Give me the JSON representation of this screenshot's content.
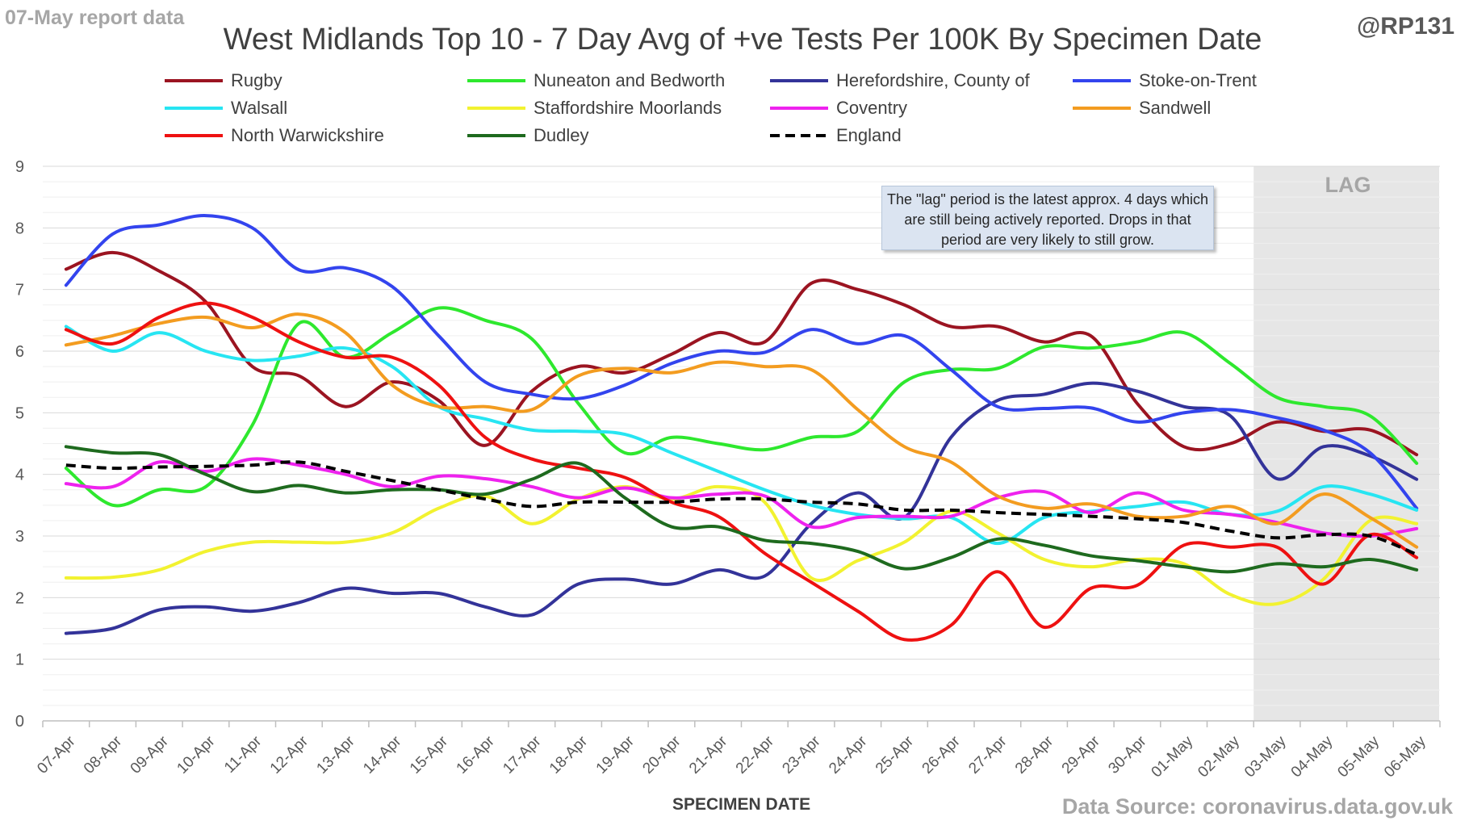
{
  "header": {
    "report_date": "07-May report data",
    "handle": "@RP131",
    "source": "Data Source: coronavirus.data.gov.uk"
  },
  "annotations": {
    "lag_label": "LAG",
    "lag_note": "The \"lag\" period is the latest approx. 4 days which are still being actively reported.  Drops in that period are very likely to still grow."
  },
  "chart_data": {
    "type": "line",
    "title": "West Midlands Top 10 - 7 Day Avg of +ve Tests Per 100K By Specimen Date",
    "xlabel": "SPECIMEN DATE",
    "ylabel": "",
    "ylim": [
      0,
      9
    ],
    "yticks": [
      0,
      1,
      2,
      3,
      4,
      5,
      6,
      7,
      8,
      9
    ],
    "grid": true,
    "legend_position": "top",
    "lag_start": "03-May",
    "lag_end": "06-May",
    "lag_color": "#e6e6e6",
    "categories": [
      "07-Apr",
      "08-Apr",
      "09-Apr",
      "10-Apr",
      "11-Apr",
      "12-Apr",
      "13-Apr",
      "14-Apr",
      "15-Apr",
      "16-Apr",
      "17-Apr",
      "18-Apr",
      "19-Apr",
      "20-Apr",
      "21-Apr",
      "22-Apr",
      "23-Apr",
      "24-Apr",
      "25-Apr",
      "26-Apr",
      "27-Apr",
      "28-Apr",
      "29-Apr",
      "30-Apr",
      "01-May",
      "02-May",
      "03-May",
      "04-May",
      "05-May",
      "06-May"
    ],
    "series": [
      {
        "name": "Rugby",
        "color": "#9b1421",
        "dashed": false,
        "values": [
          7.33,
          7.6,
          7.3,
          6.8,
          5.75,
          5.6,
          5.1,
          5.5,
          5.2,
          4.47,
          5.35,
          5.75,
          5.65,
          5.95,
          6.3,
          6.15,
          7.1,
          7.0,
          6.75,
          6.4,
          6.4,
          6.15,
          6.25,
          5.15,
          4.45,
          4.5,
          4.85,
          4.7,
          4.72,
          4.32
        ]
      },
      {
        "name": "Nuneaton and Bedworth",
        "color": "#2ee82e",
        "dashed": false,
        "values": [
          4.1,
          3.5,
          3.75,
          3.8,
          4.8,
          6.45,
          5.9,
          6.3,
          6.7,
          6.5,
          6.2,
          5.15,
          4.35,
          4.6,
          4.5,
          4.4,
          4.6,
          4.7,
          5.5,
          5.7,
          5.72,
          6.07,
          6.05,
          6.15,
          6.3,
          5.8,
          5.25,
          5.1,
          4.95,
          4.18
        ]
      },
      {
        "name": "Herefordshire, County of",
        "color": "#333399",
        "dashed": false,
        "values": [
          1.42,
          1.5,
          1.8,
          1.85,
          1.78,
          1.92,
          2.15,
          2.07,
          2.07,
          1.85,
          1.72,
          2.22,
          2.3,
          2.22,
          2.45,
          2.35,
          3.2,
          3.7,
          3.3,
          4.6,
          5.2,
          5.3,
          5.48,
          5.35,
          5.1,
          4.95,
          3.93,
          4.45,
          4.3,
          3.92
        ]
      },
      {
        "name": "Stoke-on-Trent",
        "color": "#3344ee",
        "dashed": false,
        "values": [
          7.07,
          7.9,
          8.05,
          8.2,
          8.0,
          7.32,
          7.35,
          7.05,
          6.25,
          5.5,
          5.3,
          5.23,
          5.45,
          5.8,
          6.0,
          5.98,
          6.35,
          6.12,
          6.25,
          5.7,
          5.1,
          5.07,
          5.08,
          4.85,
          5.0,
          5.05,
          4.92,
          4.72,
          4.35,
          3.45
        ]
      },
      {
        "name": "Walsall",
        "color": "#27e5f2",
        "dashed": false,
        "values": [
          6.4,
          6.0,
          6.3,
          6.0,
          5.85,
          5.92,
          6.05,
          5.75,
          5.1,
          4.9,
          4.72,
          4.7,
          4.65,
          4.35,
          4.05,
          3.75,
          3.5,
          3.35,
          3.28,
          3.3,
          2.88,
          3.3,
          3.4,
          3.48,
          3.55,
          3.35,
          3.4,
          3.8,
          3.68,
          3.42
        ]
      },
      {
        "name": "Staffordshire Moorlands",
        "color": "#f2f230",
        "dashed": false,
        "values": [
          2.32,
          2.33,
          2.45,
          2.75,
          2.9,
          2.9,
          2.9,
          3.05,
          3.45,
          3.65,
          3.2,
          3.6,
          3.8,
          3.6,
          3.8,
          3.55,
          2.32,
          2.6,
          2.9,
          3.4,
          3.05,
          2.62,
          2.5,
          2.62,
          2.55,
          2.05,
          1.9,
          2.3,
          3.25,
          3.2
        ]
      },
      {
        "name": "Coventry",
        "color": "#ee22ee",
        "dashed": false,
        "values": [
          3.85,
          3.8,
          4.2,
          4.05,
          4.25,
          4.15,
          4.0,
          3.8,
          3.97,
          3.93,
          3.8,
          3.62,
          3.78,
          3.62,
          3.68,
          3.65,
          3.15,
          3.3,
          3.32,
          3.32,
          3.62,
          3.72,
          3.38,
          3.7,
          3.42,
          3.35,
          3.22,
          3.05,
          3.0,
          3.12
        ]
      },
      {
        "name": "Sandwell",
        "color": "#f39c20",
        "dashed": false,
        "values": [
          6.1,
          6.25,
          6.45,
          6.55,
          6.38,
          6.6,
          6.3,
          5.45,
          5.1,
          5.1,
          5.05,
          5.6,
          5.72,
          5.65,
          5.82,
          5.75,
          5.7,
          5.05,
          4.45,
          4.2,
          3.65,
          3.45,
          3.52,
          3.32,
          3.32,
          3.48,
          3.2,
          3.68,
          3.3,
          2.82
        ]
      },
      {
        "name": "North Warwickshire",
        "color": "#ee1111",
        "dashed": false,
        "values": [
          6.35,
          6.12,
          6.55,
          6.78,
          6.55,
          6.15,
          5.9,
          5.9,
          5.45,
          4.6,
          4.25,
          4.1,
          3.95,
          3.55,
          3.32,
          2.72,
          2.25,
          1.78,
          1.32,
          1.55,
          2.42,
          1.52,
          2.15,
          2.2,
          2.85,
          2.82,
          2.82,
          2.22,
          3.02,
          2.65
        ]
      },
      {
        "name": "Dudley",
        "color": "#1e6a1e",
        "dashed": false,
        "values": [
          4.45,
          4.35,
          4.32,
          4.0,
          3.72,
          3.82,
          3.7,
          3.75,
          3.75,
          3.68,
          3.92,
          4.18,
          3.62,
          3.15,
          3.15,
          2.93,
          2.88,
          2.75,
          2.47,
          2.65,
          2.95,
          2.85,
          2.68,
          2.6,
          2.5,
          2.42,
          2.55,
          2.5,
          2.62,
          2.45
        ]
      },
      {
        "name": "England",
        "color": "#000000",
        "dashed": true,
        "values": [
          4.15,
          4.1,
          4.12,
          4.13,
          4.15,
          4.2,
          4.05,
          3.9,
          3.75,
          3.6,
          3.48,
          3.55,
          3.55,
          3.55,
          3.6,
          3.6,
          3.55,
          3.52,
          3.42,
          3.42,
          3.38,
          3.35,
          3.32,
          3.28,
          3.22,
          3.08,
          2.97,
          3.02,
          3.0,
          2.7
        ]
      }
    ]
  }
}
